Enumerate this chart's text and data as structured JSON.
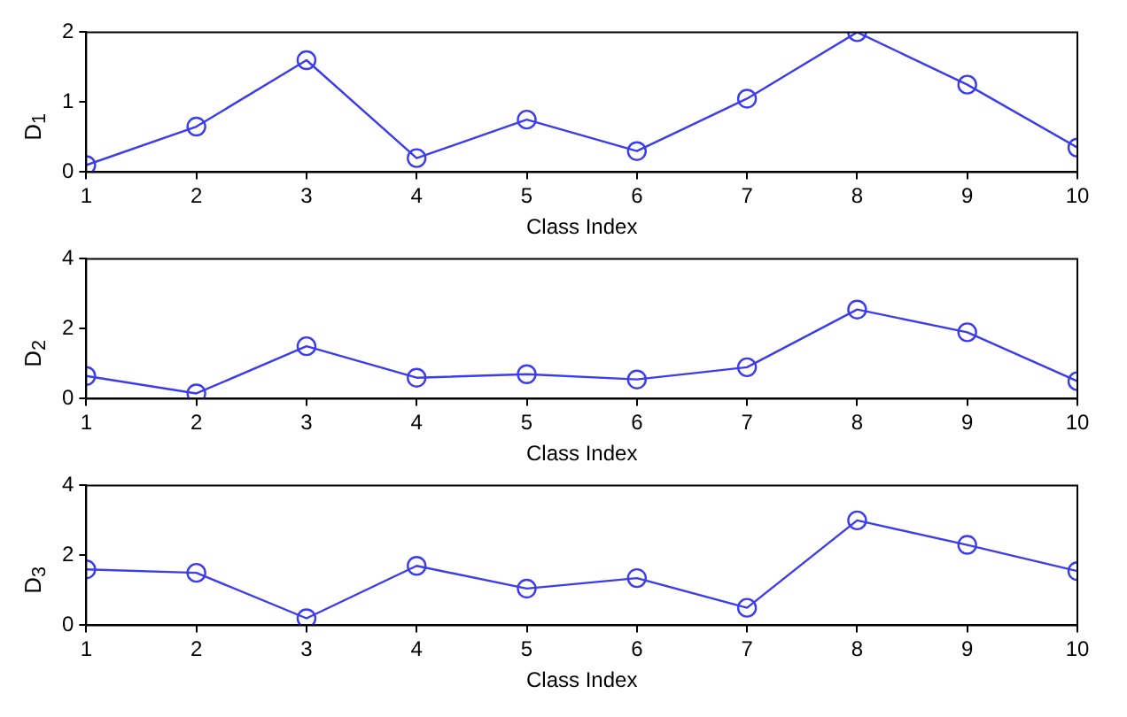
{
  "chart_data": [
    {
      "type": "line",
      "xlabel": "Class Index",
      "ylabel": "D$_{1}$",
      "x": [
        1,
        2,
        3,
        4,
        5,
        6,
        7,
        8,
        9,
        10
      ],
      "values": [
        0.1,
        0.65,
        1.6,
        0.2,
        0.75,
        0.3,
        1.05,
        2.0,
        1.25,
        0.35
      ],
      "color": "#3b3bef",
      "marker": "circle",
      "xlim": [
        1,
        10
      ],
      "xticks": [
        1,
        2,
        3,
        4,
        5,
        6,
        7,
        8,
        9,
        10
      ],
      "ylim": [
        0,
        2
      ],
      "yticks": [
        0,
        1,
        2
      ]
    },
    {
      "type": "line",
      "xlabel": "Class Index",
      "ylabel": "D$_{2}$",
      "x": [
        1,
        2,
        3,
        4,
        5,
        6,
        7,
        8,
        9,
        10
      ],
      "values": [
        0.65,
        0.15,
        1.5,
        0.6,
        0.7,
        0.55,
        0.9,
        2.55,
        1.9,
        0.5
      ],
      "color": "#3b3bef",
      "marker": "circle",
      "xlim": [
        1,
        10
      ],
      "xticks": [
        1,
        2,
        3,
        4,
        5,
        6,
        7,
        8,
        9,
        10
      ],
      "ylim": [
        0,
        4
      ],
      "yticks": [
        0,
        2,
        4
      ]
    },
    {
      "type": "line",
      "xlabel": "Class Index",
      "ylabel": "D$_{3}$",
      "x": [
        1,
        2,
        3,
        4,
        5,
        6,
        7,
        8,
        9,
        10
      ],
      "values": [
        1.6,
        1.5,
        0.2,
        1.7,
        1.05,
        1.35,
        0.5,
        3.0,
        2.3,
        1.55
      ],
      "color": "#3b3bef",
      "marker": "circle",
      "xlim": [
        1,
        10
      ],
      "xticks": [
        1,
        2,
        3,
        4,
        5,
        6,
        7,
        8,
        9,
        10
      ],
      "ylim": [
        0,
        4
      ],
      "yticks": [
        0,
        2,
        4
      ]
    }
  ]
}
